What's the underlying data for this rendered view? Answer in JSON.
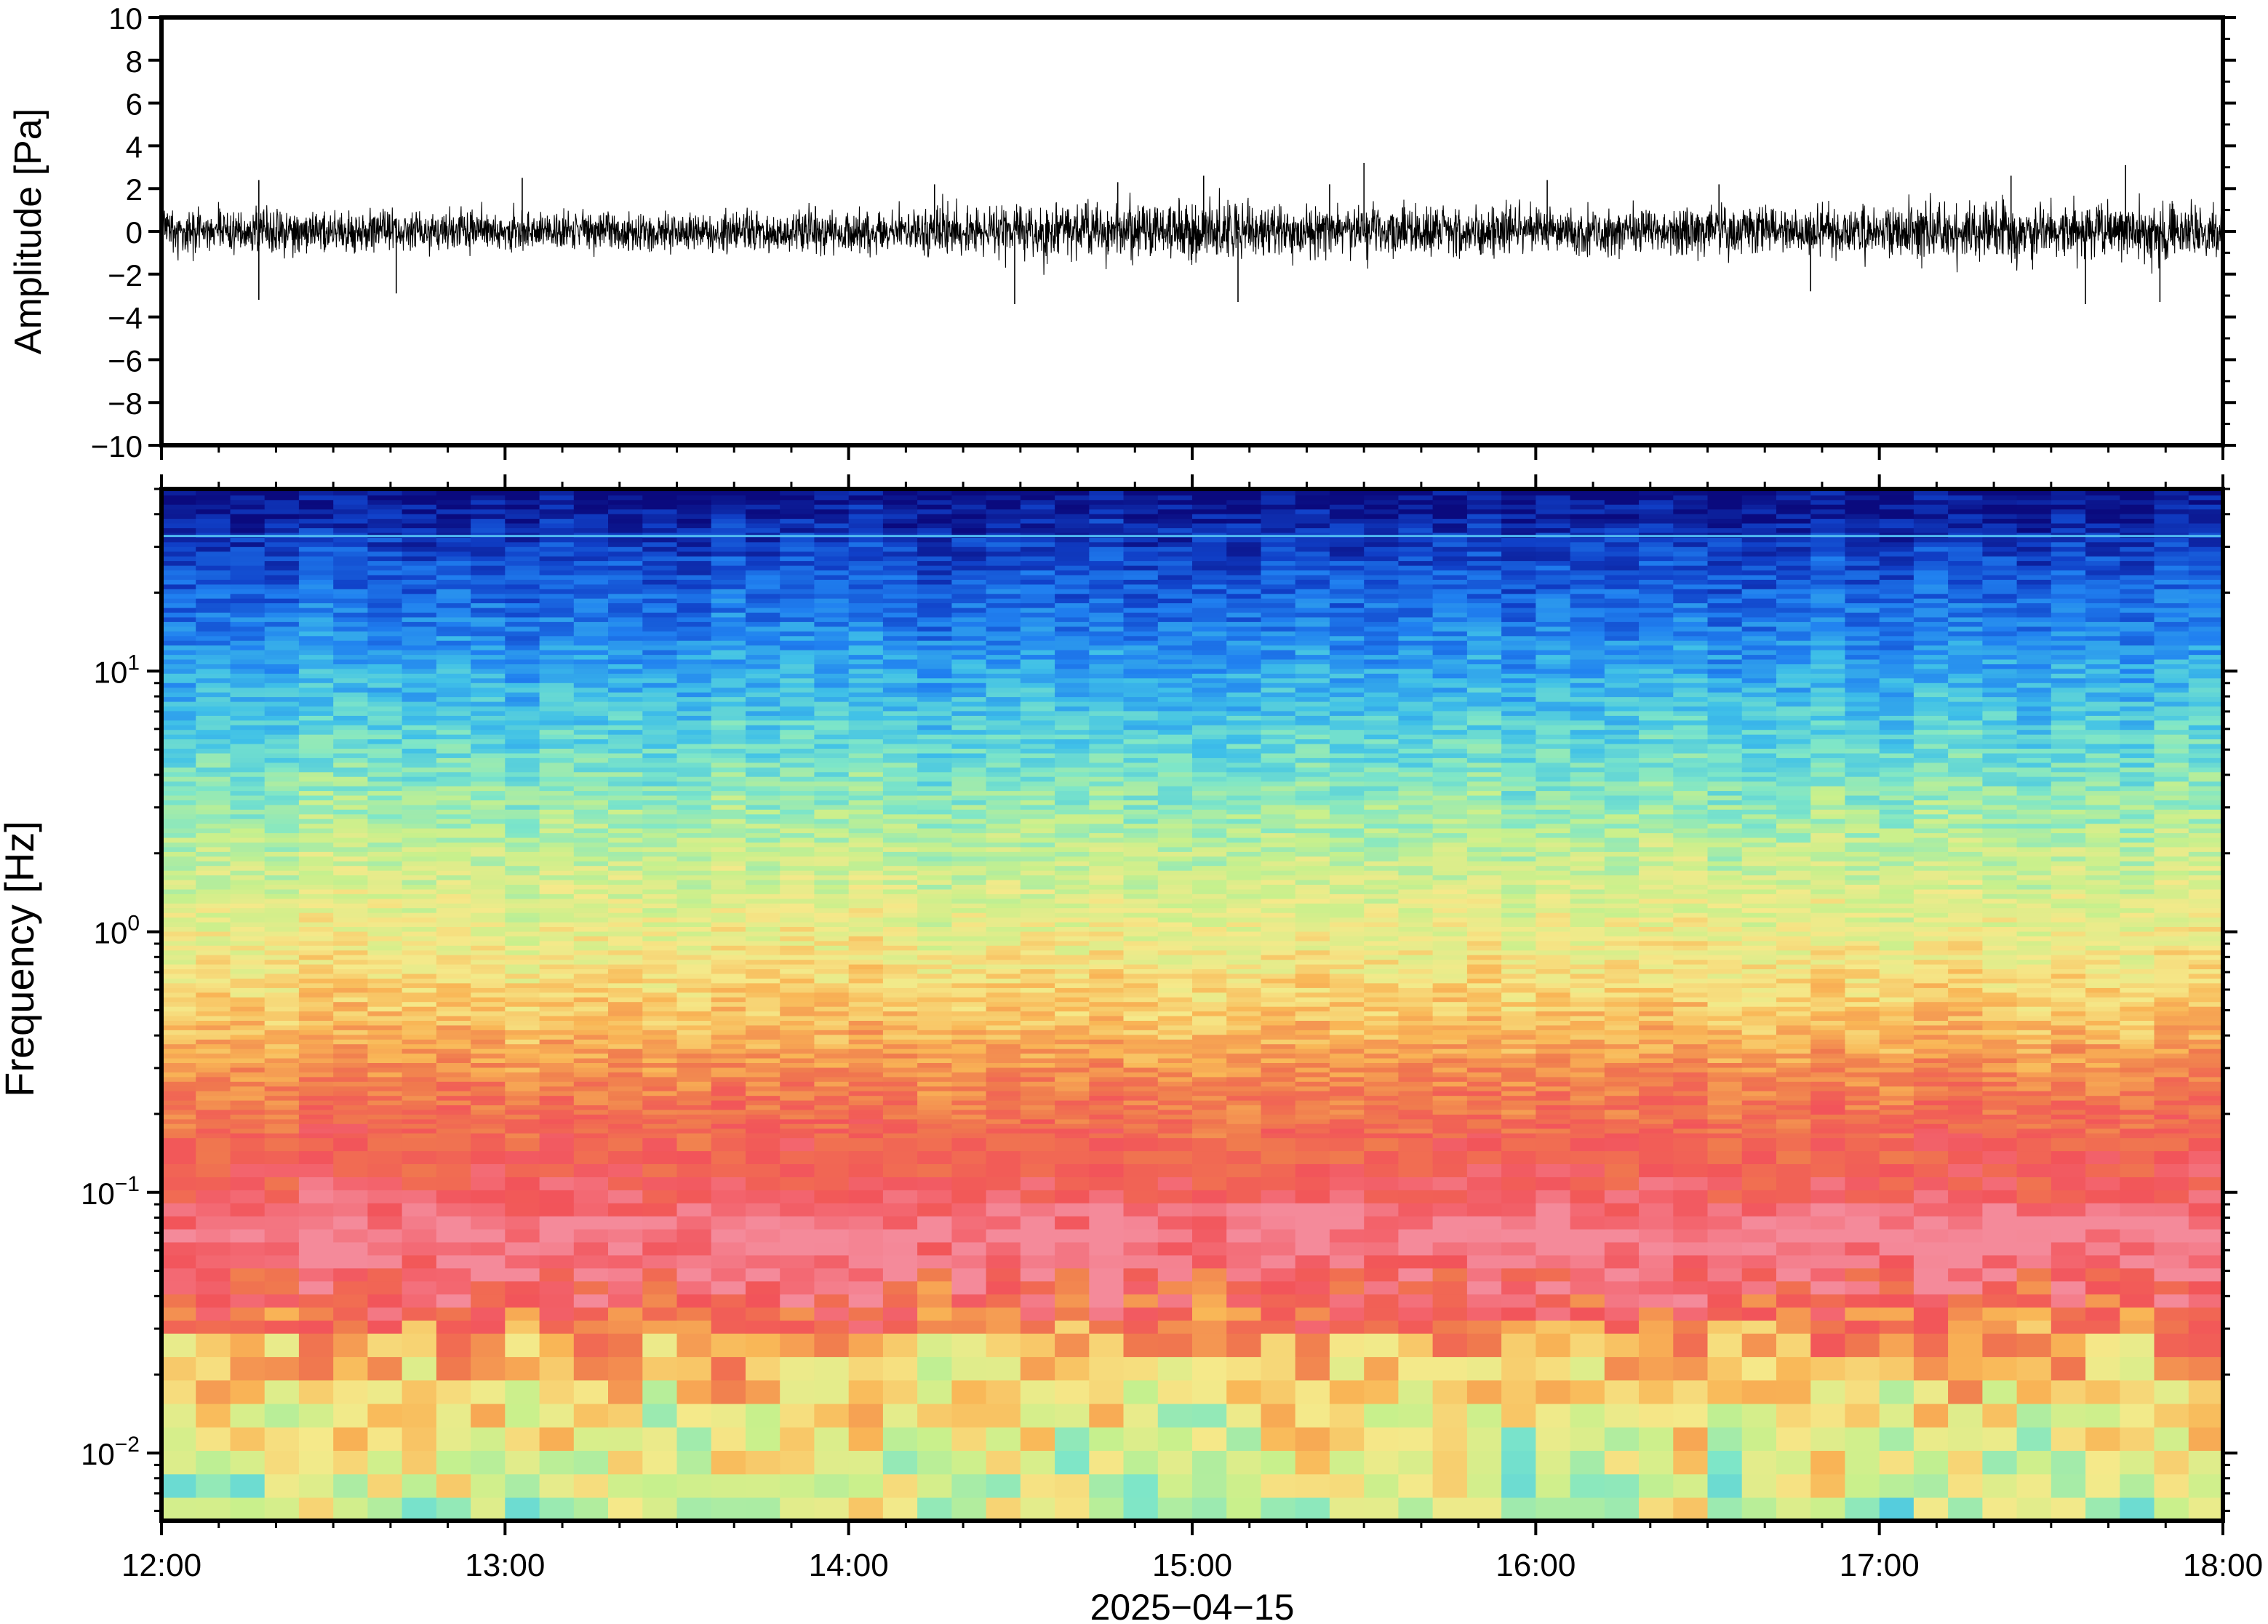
{
  "chart_data": [
    {
      "type": "line",
      "panel": "waveform",
      "ylabel": "Amplitude [Pa]",
      "ylim": [
        -10,
        10
      ],
      "yticks": [
        -10,
        -8,
        -6,
        -4,
        -2,
        0,
        2,
        4,
        6,
        8,
        10
      ],
      "ytick_labels": [
        "−10",
        "−8",
        "−6",
        "−4",
        "−2",
        "0",
        "2",
        "4",
        "6",
        "8",
        "10"
      ],
      "xlim": [
        "12:00",
        "18:00"
      ],
      "grid": false,
      "noise_envelope": [
        {
          "time": "12:00",
          "min": -2.0,
          "max": 1.8
        },
        {
          "time": "12:30",
          "min": -2.1,
          "max": 1.5
        },
        {
          "time": "13:00",
          "min": -1.8,
          "max": 1.6
        },
        {
          "time": "13:30",
          "min": -1.7,
          "max": 1.5
        },
        {
          "time": "14:00",
          "min": -1.9,
          "max": 1.7
        },
        {
          "time": "14:30",
          "min": -2.6,
          "max": 2.0
        },
        {
          "time": "15:00",
          "min": -2.4,
          "max": 2.2
        },
        {
          "time": "15:30",
          "min": -2.2,
          "max": 2.3
        },
        {
          "time": "16:00",
          "min": -1.9,
          "max": 1.8
        },
        {
          "time": "16:30",
          "min": -2.0,
          "max": 1.9
        },
        {
          "time": "17:00",
          "min": -2.3,
          "max": 2.1
        },
        {
          "time": "17:30",
          "min": -2.5,
          "max": 2.4
        },
        {
          "time": "18:00",
          "min": -2.4,
          "max": 2.2
        }
      ],
      "peak_spikes": [
        {
          "time": "12:17",
          "value": 2.4
        },
        {
          "time": "12:17",
          "value": -3.2
        },
        {
          "time": "12:41",
          "value": -2.9
        },
        {
          "time": "13:03",
          "value": 2.5
        },
        {
          "time": "14:15",
          "value": 2.2
        },
        {
          "time": "14:29",
          "value": -3.4
        },
        {
          "time": "14:47",
          "value": 2.3
        },
        {
          "time": "15:02",
          "value": 2.6
        },
        {
          "time": "15:08",
          "value": -3.3
        },
        {
          "time": "15:24",
          "value": 2.2
        },
        {
          "time": "15:30",
          "value": 3.2
        },
        {
          "time": "16:02",
          "value": 2.4
        },
        {
          "time": "16:32",
          "value": 2.2
        },
        {
          "time": "16:48",
          "value": -2.8
        },
        {
          "time": "17:23",
          "value": 2.6
        },
        {
          "time": "17:36",
          "value": -3.4
        },
        {
          "time": "17:43",
          "value": 3.1
        },
        {
          "time": "17:49",
          "value": -3.3
        }
      ]
    },
    {
      "type": "heatmap",
      "panel": "spectrogram",
      "ylabel": "Frequency [Hz]",
      "yscale": "log",
      "ylim": [
        0.0055,
        50
      ],
      "yticks": [
        0.01,
        0.1,
        1,
        10
      ],
      "ytick_labels": [
        {
          "base": "10",
          "exp": "−2"
        },
        {
          "base": "10",
          "exp": "−1"
        },
        {
          "base": "10",
          "exp": "0"
        },
        {
          "base": "10",
          "exp": "1"
        }
      ],
      "xlabel": "2025−04−15",
      "xlim": [
        "12:00",
        "18:00"
      ],
      "xticks": [
        "12:00",
        "13:00",
        "14:00",
        "15:00",
        "16:00",
        "17:00",
        "18:00"
      ],
      "time_columns": 60,
      "colormap": [
        "#0a0a7e",
        "#1040c8",
        "#2080f0",
        "#3fc0e8",
        "#7ee6c8",
        "#c8f08c",
        "#f5e98a",
        "#f9b656",
        "#f07a4e",
        "#f2545a",
        "#f48a9a"
      ],
      "spectral_profile": [
        {
          "freq_hz": 50,
          "color": "#0a0a7e"
        },
        {
          "freq_hz": 30,
          "color": "#1040c8"
        },
        {
          "freq_hz": 15,
          "color": "#2080f0"
        },
        {
          "freq_hz": 8,
          "color": "#3fc0e8"
        },
        {
          "freq_hz": 4,
          "color": "#7ee6c8"
        },
        {
          "freq_hz": 2,
          "color": "#c8f08c"
        },
        {
          "freq_hz": 0.8,
          "color": "#f5e98a"
        },
        {
          "freq_hz": 0.4,
          "color": "#f9b656"
        },
        {
          "freq_hz": 0.25,
          "color": "#f07a4e"
        },
        {
          "freq_hz": 0.1,
          "color": "#f2545a"
        },
        {
          "freq_hz": 0.07,
          "color": "#f48a9a"
        },
        {
          "freq_hz": 0.04,
          "color": "#f2545a"
        },
        {
          "freq_hz": 0.025,
          "color": "#f9b656"
        },
        {
          "freq_hz": 0.015,
          "color": "#f5e98a"
        },
        {
          "freq_hz": 0.0055,
          "color": "#a8f0b0"
        }
      ],
      "narrowband_line_hz": 33
    }
  ]
}
